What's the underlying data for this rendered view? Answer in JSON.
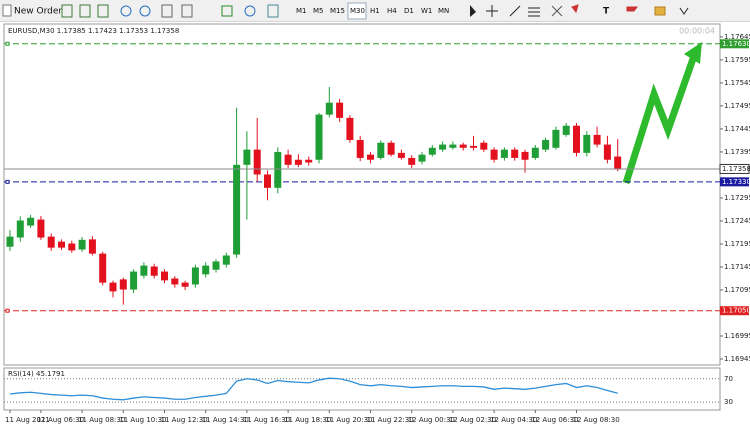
{
  "toolbar": {
    "new_order": "New Order",
    "timeframes": [
      "M1",
      "M5",
      "M15",
      "M30",
      "H1",
      "H4",
      "D1",
      "W1",
      "MN"
    ],
    "active": "M30"
  },
  "timer": "00:00:04",
  "chart_data": {
    "type": "candlestick",
    "symbol": "EURUSD,M30",
    "categories": [
      "11 Aug 2021",
      null,
      null,
      "11 Aug 06:30",
      null,
      null,
      null,
      "11 Aug 08:30",
      null,
      null,
      null,
      "11 Aug 10:30",
      null,
      null,
      null,
      "11 Aug 12:30",
      null,
      null,
      null,
      "11 Aug 14:30",
      null,
      null,
      null,
      "11 Aug 16:30",
      null,
      null,
      null,
      "11 Aug 18:30",
      null,
      null,
      null,
      "11 Aug 20:30",
      null,
      null,
      null,
      "11 Aug 22:30",
      null,
      null,
      null,
      "12 Aug 00:30",
      null,
      null,
      null,
      "12 Aug 02:30",
      null,
      null,
      null,
      "12 Aug 04:30",
      null,
      null,
      null,
      "12 Aug 06:30",
      null,
      null,
      null,
      "12 Aug 08:30",
      null,
      null,
      null,
      null
    ],
    "open": [
      1.17189,
      1.17209,
      1.17235,
      1.17248,
      1.17211,
      1.172,
      1.17196,
      1.17183,
      1.17205,
      1.17174,
      1.17111,
      1.17118,
      1.17096,
      1.17126,
      1.17146,
      1.17135,
      1.1712,
      1.17111,
      1.17107,
      1.17129,
      1.17139,
      1.1715,
      1.17172,
      1.17367,
      1.174,
      1.17346,
      1.17317,
      1.17389,
      1.17378,
      1.17378,
      1.17378,
      1.17476,
      1.17502,
      1.17469,
      1.17421,
      1.17389,
      1.17382,
      1.17415,
      1.17393,
      1.17382,
      1.17374,
      1.17389,
      1.174,
      1.17404,
      1.17411,
      1.17408,
      1.17415,
      1.174,
      1.17382,
      1.174,
      1.17395,
      1.17382,
      1.174,
      1.17404,
      1.17432,
      1.17452,
      1.17393,
      1.17432,
      1.17411,
      1.17385
    ],
    "high": [
      1.17225,
      1.17255,
      1.17258,
      1.17256,
      1.17218,
      1.17205,
      1.17202,
      1.1721,
      1.17212,
      1.17178,
      1.17115,
      1.17122,
      1.1714,
      1.17155,
      1.17152,
      1.1714,
      1.17125,
      1.17115,
      1.1715,
      1.17155,
      1.17162,
      1.17176,
      1.17491,
      1.1744,
      1.17469,
      1.17355,
      1.17405,
      1.174,
      1.1739,
      1.17385,
      1.1748,
      1.17536,
      1.1751,
      1.17475,
      1.1743,
      1.17395,
      1.1742,
      1.1742,
      1.174,
      1.17388,
      1.17395,
      1.1741,
      1.17418,
      1.17418,
      1.17415,
      1.1743,
      1.1742,
      1.17405,
      1.17405,
      1.17405,
      1.174,
      1.1741,
      1.17426,
      1.1745,
      1.17458,
      1.17458,
      1.1744,
      1.1745,
      1.1743,
      1.17423
    ],
    "low": [
      1.1718,
      1.172,
      1.1723,
      1.17204,
      1.1718,
      1.17182,
      1.17176,
      1.17178,
      1.1717,
      1.17105,
      1.17079,
      1.17063,
      1.17088,
      1.1712,
      1.1712,
      1.1711,
      1.171,
      1.17095,
      1.171,
      1.17122,
      1.17133,
      1.17144,
      1.17165,
      1.17248,
      1.1733,
      1.1729,
      1.17305,
      1.1736,
      1.17362,
      1.17365,
      1.1737,
      1.1747,
      1.1746,
      1.17415,
      1.17375,
      1.1737,
      1.17378,
      1.17385,
      1.17378,
      1.1736,
      1.17368,
      1.17385,
      1.17395,
      1.174,
      1.17398,
      1.17398,
      1.17395,
      1.17372,
      1.17376,
      1.17376,
      1.1735,
      1.17378,
      1.17395,
      1.174,
      1.17428,
      1.17385,
      1.17385,
      1.17405,
      1.1737,
      1.17353
    ],
    "close": [
      1.17211,
      1.17246,
      1.17252,
      1.17209,
      1.17187,
      1.17187,
      1.17181,
      1.17204,
      1.17174,
      1.17111,
      1.17092,
      1.17096,
      1.17135,
      1.17148,
      1.17126,
      1.17116,
      1.17107,
      1.17102,
      1.17144,
      1.17148,
      1.17157,
      1.1717,
      1.17367,
      1.174,
      1.17346,
      1.17317,
      1.17395,
      1.17367,
      1.17367,
      1.17372,
      1.17476,
      1.17502,
      1.17469,
      1.17421,
      1.17382,
      1.17378,
      1.17415,
      1.17389,
      1.17382,
      1.17367,
      1.17389,
      1.17404,
      1.17411,
      1.17411,
      1.17404,
      1.17404,
      1.174,
      1.17378,
      1.174,
      1.17382,
      1.17378,
      1.17404,
      1.17421,
      1.17443,
      1.17452,
      1.17393,
      1.17432,
      1.17411,
      1.17378,
      1.17358
    ],
    "up_color": "#1f9e35",
    "down_color": "#e3101e",
    "ylim": [
      1.16932,
      1.17673
    ],
    "yticks": [
      1.17645,
      1.17595,
      1.17545,
      1.17495,
      1.17445,
      1.17395,
      1.17295,
      1.17245,
      1.17195,
      1.17145,
      1.17095,
      1.16995,
      1.16945
    ],
    "levels": [
      {
        "value": 1.1763,
        "label": "1.17630",
        "color": "#2f9e2f"
      },
      {
        "value": 1.1733,
        "label": "1.17330",
        "color": "#1a1aa0"
      },
      {
        "value": 1.1705,
        "label": "1.17050",
        "color": "#e02020"
      }
    ],
    "price_line_color": "#8a8a8a",
    "rsi": {
      "name": "RSI(14)",
      "color": "#2e8fd8",
      "ylim": [
        20,
        85
      ],
      "yticks": [
        70,
        30
      ],
      "values": [
        44,
        46,
        47,
        45,
        43,
        42,
        41,
        42,
        41,
        37,
        35,
        34,
        37,
        39,
        38,
        37,
        35,
        35,
        38,
        40,
        42,
        45,
        66,
        70,
        68,
        62,
        67,
        65,
        64,
        63,
        68,
        71,
        70,
        66,
        60,
        58,
        60,
        58,
        57,
        55,
        56,
        57,
        58,
        58,
        57,
        57,
        56,
        52,
        54,
        53,
        52,
        54,
        57,
        60,
        62,
        55,
        58,
        55,
        50,
        45.1791
      ]
    }
  }
}
